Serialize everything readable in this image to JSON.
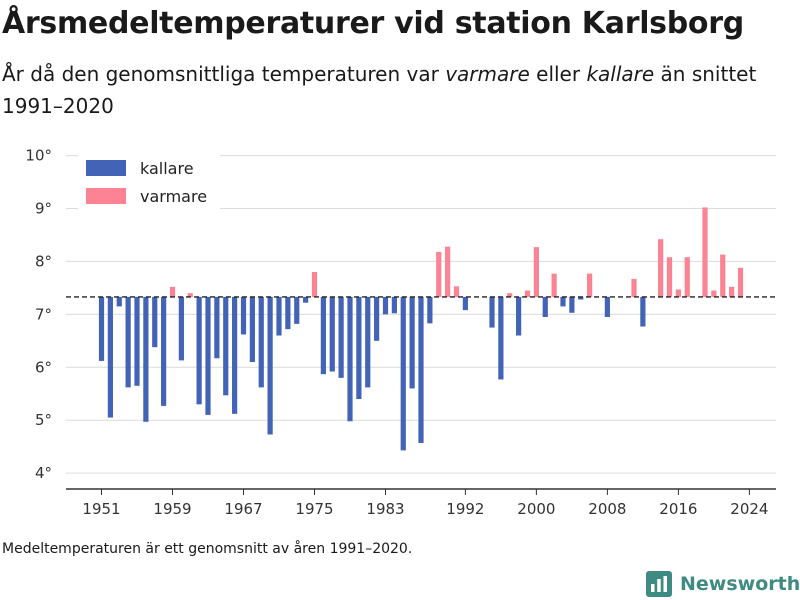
{
  "header": {
    "title": "Årsmedeltemperaturer vid station Karlsborg",
    "subtitle_parts": [
      {
        "text": "År då den genomsnittliga temperaturen var ",
        "italic": false
      },
      {
        "text": "varmare",
        "italic": true
      },
      {
        "text": " eller ",
        "italic": false
      },
      {
        "text": "kallare",
        "italic": true
      },
      {
        "text": " än snittet 1991–2020",
        "italic": false
      }
    ]
  },
  "footnote": "Medeltemperaturen är ett genomsnitt av åren 1991–2020.",
  "brand": {
    "name": "Newsworthy",
    "icon": "bar-chart-logo-icon",
    "color": "#3f8a83"
  },
  "colors": {
    "colder": "#4363b7",
    "warmer": "#fb8393",
    "reference_line": "#222222",
    "grid": "#dcdcdc"
  },
  "chart_data": {
    "type": "bar",
    "baseline": 7.33,
    "ylim": [
      3.7,
      10.2
    ],
    "yticks": [
      4,
      5,
      6,
      7,
      8,
      9,
      10
    ],
    "ytick_labels": [
      "4°",
      "5°",
      "6°",
      "7°",
      "8°",
      "9°",
      "10°"
    ],
    "xlim": [
      1947,
      2027
    ],
    "xticks": [
      1951,
      1959,
      1967,
      1975,
      1983,
      1992,
      2000,
      2008,
      2016,
      2024
    ],
    "xtick_labels": [
      "1951",
      "1959",
      "1967",
      "1975",
      "1983",
      "1992",
      "2000",
      "2008",
      "2016",
      "2024"
    ],
    "grid": true,
    "legend": {
      "position": "top-left",
      "entries": [
        {
          "label": "kallare",
          "color": "#4363b7"
        },
        {
          "label": "varmare",
          "color": "#fb8393"
        }
      ]
    },
    "years": [
      1951,
      1952,
      1953,
      1954,
      1955,
      1956,
      1957,
      1958,
      1959,
      1960,
      1961,
      1962,
      1963,
      1964,
      1965,
      1966,
      1967,
      1968,
      1969,
      1970,
      1971,
      1972,
      1973,
      1974,
      1975,
      1976,
      1977,
      1978,
      1979,
      1980,
      1981,
      1982,
      1983,
      1984,
      1985,
      1986,
      1987,
      1988,
      1989,
      1990,
      1991,
      1992,
      1993,
      1994,
      1995,
      1996,
      1997,
      1998,
      1999,
      2000,
      2001,
      2002,
      2003,
      2004,
      2005,
      2006,
      2007,
      2008,
      2009,
      2010,
      2011,
      2012,
      2013,
      2014,
      2015,
      2016,
      2017,
      2018,
      2019,
      2020,
      2021,
      2022,
      2023,
      2024
    ],
    "values": [
      6.12,
      5.05,
      7.15,
      5.62,
      5.65,
      4.97,
      6.38,
      5.27,
      7.52,
      6.13,
      7.4,
      5.3,
      5.1,
      6.17,
      5.47,
      5.12,
      6.62,
      6.1,
      5.62,
      4.73,
      6.6,
      6.72,
      6.82,
      7.22,
      7.8,
      5.87,
      5.92,
      5.8,
      4.98,
      5.4,
      5.62,
      6.5,
      7.0,
      7.02,
      4.43,
      5.6,
      4.57,
      6.83,
      8.18,
      8.28,
      7.53,
      7.08,
      7.33,
      7.33,
      6.75,
      5.77,
      7.4,
      6.6,
      7.45,
      8.27,
      6.95,
      7.77,
      7.15,
      7.03,
      7.28,
      7.77,
      7.33,
      6.95,
      7.33,
      7.33,
      7.67,
      6.77,
      7.33,
      8.42,
      8.08,
      7.47,
      8.08,
      7.33,
      9.02,
      7.45,
      8.13,
      7.52,
      7.88,
      7.33
    ]
  }
}
